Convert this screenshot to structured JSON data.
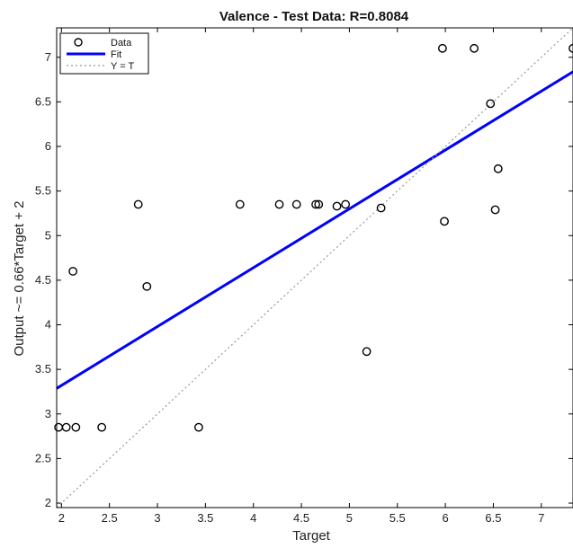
{
  "chart_data": {
    "type": "scatter",
    "title": "Valence - Test Data: R=0.8084",
    "xlabel": "Target",
    "ylabel": "Output ~= 0.66*Target + 2",
    "xlim": [
      1.95,
      7.33
    ],
    "ylim": [
      1.95,
      7.33
    ],
    "xticks": [
      2,
      2.5,
      3,
      3.5,
      4,
      4.5,
      5,
      5.5,
      6,
      6.5,
      7
    ],
    "yticks": [
      2,
      2.5,
      3,
      3.5,
      4,
      4.5,
      5,
      5.5,
      6,
      6.5,
      7
    ],
    "xtick_labels": [
      "2",
      "2.5",
      "3",
      "3.5",
      "4",
      "4.5",
      "5",
      "5.5",
      "6",
      "6.5",
      "7"
    ],
    "ytick_labels": [
      "2",
      "2.5",
      "3",
      "3.5",
      "4",
      "4.5",
      "5",
      "5.5",
      "6",
      "6.5",
      "7"
    ],
    "grid": false,
    "legend_position": "top-left",
    "series": [
      {
        "name": "Data",
        "kind": "scatter",
        "marker": "open-circle",
        "color": "#000000",
        "x": [
          1.97,
          2.05,
          2.15,
          2.42,
          3.43,
          2.8,
          3.86,
          4.27,
          4.45,
          4.65,
          4.68,
          4.87,
          4.96,
          2.12,
          2.89,
          5.18,
          5.33,
          5.97,
          6.3,
          6.47,
          6.55,
          5.99,
          6.52,
          7.33
        ],
        "y": [
          2.85,
          2.85,
          2.85,
          2.85,
          2.85,
          5.35,
          5.35,
          5.35,
          5.35,
          5.35,
          5.35,
          5.33,
          5.35,
          4.6,
          4.43,
          3.7,
          5.31,
          7.1,
          7.1,
          6.48,
          5.75,
          5.16,
          5.29,
          7.1
        ]
      },
      {
        "name": "Fit",
        "kind": "line",
        "color": "#0000ff",
        "slope": 0.66,
        "intercept": 2.0
      },
      {
        "name": "Y = T",
        "kind": "line",
        "style": "dotted",
        "color": "#999999",
        "slope": 1.0,
        "intercept": 0.0
      }
    ]
  }
}
